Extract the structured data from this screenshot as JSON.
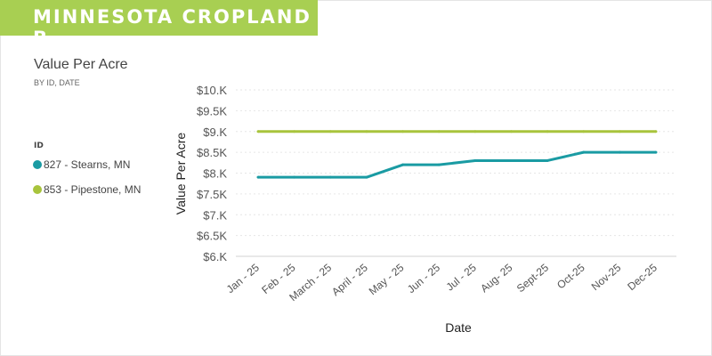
{
  "banner": {
    "title": "MINNESOTA CROPLAND B",
    "color": "#a8cf52"
  },
  "chart_data": {
    "type": "line",
    "title": "Value Per Acre",
    "subtitle": "BY ID, DATE",
    "xlabel": "Date",
    "ylabel": "Value Per Acre",
    "legend_title": "ID",
    "legend_position": "left",
    "grid": true,
    "ylim": [
      6000,
      10000
    ],
    "yticks": [
      6000,
      6500,
      7000,
      7500,
      8000,
      8500,
      9000,
      9500,
      10000
    ],
    "ytick_labels": [
      "$6.K",
      "$6.5K",
      "$7.K",
      "$7.5K",
      "$8.K",
      "$8.5K",
      "$9.K",
      "$9.5K",
      "$10.K"
    ],
    "categories": [
      "Jan - 25",
      "Feb - 25",
      "March - 25",
      "April - 25",
      "May - 25",
      "Jun - 25",
      "Jul - 25",
      "Aug- 25",
      "Sept-25",
      "Oct-25",
      "Nov-25",
      "Dec-25"
    ],
    "series": [
      {
        "name": "827 - Stearns, MN",
        "color": "#1a9ba3",
        "values": [
          7900,
          7900,
          7900,
          7900,
          8200,
          8200,
          8300,
          8300,
          8300,
          8500,
          8500,
          8500
        ]
      },
      {
        "name": "853 - Pipestone, MN",
        "color": "#a8c43c",
        "values": [
          9000,
          9000,
          9000,
          9000,
          9000,
          9000,
          9000,
          9000,
          9000,
          9000,
          9000,
          9000
        ]
      }
    ]
  }
}
